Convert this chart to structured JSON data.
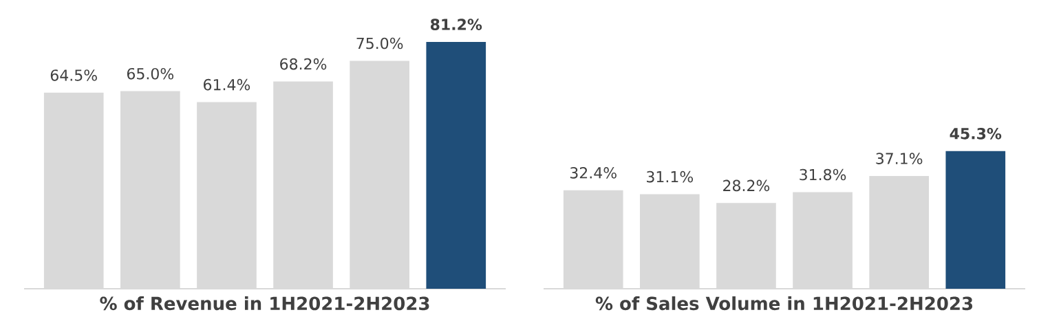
{
  "chart_data": [
    {
      "type": "bar",
      "xlabel": "% of Revenue in 1H2021-2H2023",
      "categories": [
        null,
        null,
        null,
        null,
        null,
        null
      ],
      "values": [
        64.5,
        65.0,
        61.4,
        68.2,
        75.0,
        81.2
      ],
      "colors": [
        "#d9d9d9",
        "#d9d9d9",
        "#d9d9d9",
        "#d9d9d9",
        "#d9d9d9",
        "#1f4e79"
      ],
      "value_labels": [
        "64.5%",
        "65.0%",
        "61.4%",
        "68.2%",
        "75.0%",
        "**81.2%**"
      ],
      "tick_labels": false
    },
    {
      "type": "bar",
      "xlabel": "% of Sales Volume in 1H2021-2H2023",
      "categories": [
        null,
        null,
        null,
        null,
        null,
        null
      ],
      "values": [
        32.4,
        31.1,
        28.2,
        31.8,
        37.1,
        45.3
      ],
      "colors": [
        "#d9d9d9",
        "#d9d9d9",
        "#d9d9d9",
        "#d9d9d9",
        "#d9d9d9",
        "#1f4e79"
      ],
      "value_labels": [
        "32.4%",
        "31.1%",
        "28.2%",
        "31.8%",
        "37.1%",
        "**45.3%**"
      ],
      "tick_labels": false
    }
  ]
}
